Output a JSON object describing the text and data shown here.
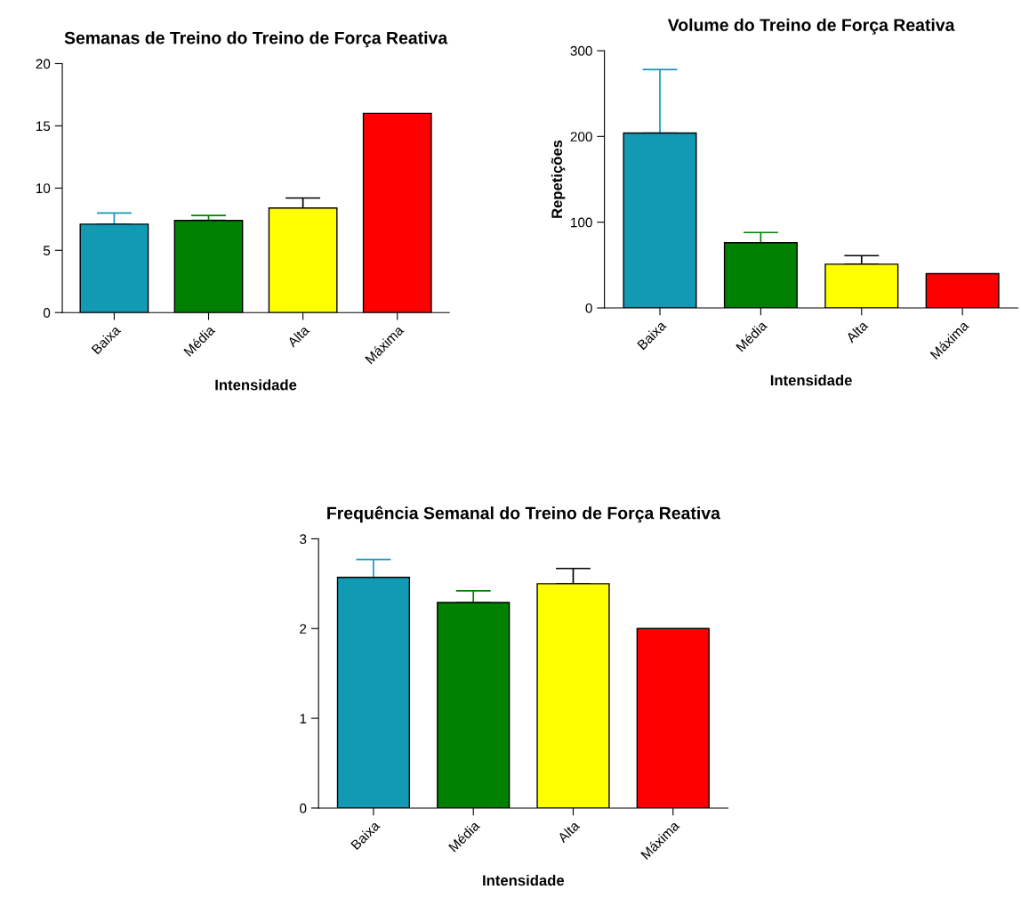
{
  "chart_data": [
    {
      "type": "bar",
      "title": "Semanas de Treino do Treino de Força Reativa",
      "xlabel": "Intensidade",
      "categories": [
        "Baixa",
        "Média",
        "Alta",
        "Máxima"
      ],
      "values": [
        7.1,
        7.4,
        8.4,
        16
      ],
      "colors": [
        "#129ab5",
        "#008000",
        "#ffff00",
        "#ff0000"
      ],
      "errors": [
        [
          7.1,
          8.0
        ],
        [
          7.4,
          7.8
        ],
        [
          8.4,
          9.2
        ],
        null
      ],
      "ylim": [
        0,
        20
      ],
      "yticks": [
        0,
        5,
        10,
        15,
        20
      ],
      "grid": false,
      "legend": false
    },
    {
      "type": "bar",
      "title": "Volume do Treino de Força Reativa",
      "xlabel": "Intensidade",
      "ylabel": "Repetições",
      "categories": [
        "Baixa",
        "Média",
        "Alta",
        "Máxima"
      ],
      "values": [
        204,
        76,
        51,
        40
      ],
      "colors": [
        "#129ab5",
        "#008000",
        "#ffff00",
        "#ff0000"
      ],
      "errors": [
        [
          204,
          278
        ],
        [
          76,
          88
        ],
        [
          51,
          61
        ],
        null
      ],
      "ylim": [
        0,
        300
      ],
      "yticks": [
        0,
        100,
        200,
        300
      ],
      "grid": false,
      "legend": false
    },
    {
      "type": "bar",
      "title": "Frequência Semanal do Treino de Força Reativa",
      "xlabel": "Intensidade",
      "categories": [
        "Baixa",
        "Média",
        "Alta",
        "Máxima"
      ],
      "values": [
        2.57,
        2.29,
        2.5,
        2.0
      ],
      "colors": [
        "#129ab5",
        "#008000",
        "#ffff00",
        "#ff0000"
      ],
      "errors": [
        [
          2.57,
          2.77
        ],
        [
          2.29,
          2.42
        ],
        [
          2.5,
          2.67
        ],
        null
      ],
      "ylim": [
        0,
        3
      ],
      "yticks": [
        0,
        1,
        2,
        3
      ],
      "grid": false,
      "legend": false
    }
  ]
}
